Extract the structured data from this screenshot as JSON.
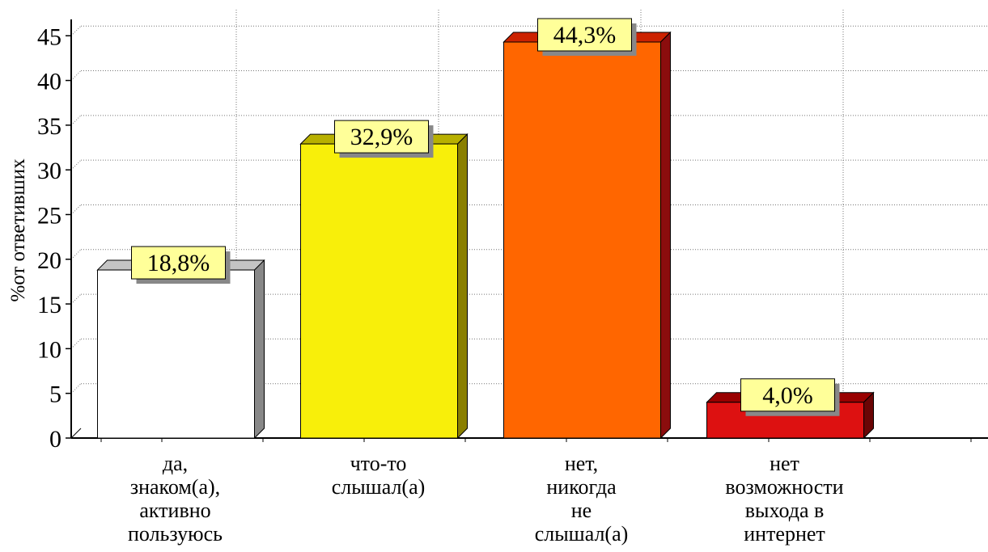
{
  "chart_data": {
    "type": "bar",
    "title": "",
    "xlabel": "",
    "ylabel": "%от ответивших",
    "ylim": [
      0,
      47
    ],
    "yticks": [
      0,
      5,
      10,
      15,
      20,
      25,
      30,
      35,
      40,
      45
    ],
    "grid": true,
    "style": "3d",
    "categories": [
      [
        "да,",
        "знаком(а),",
        "активно",
        "пользуюсь"
      ],
      [
        "что-то",
        "слышал(а)"
      ],
      [
        "нет,",
        "никогда",
        "не",
        "слышал(а)"
      ],
      [
        "нет",
        "возможности",
        "выхода в",
        "интернет"
      ]
    ],
    "values": [
      18.8,
      32.9,
      44.3,
      4.0
    ],
    "data_labels": [
      "18,8%",
      "32,9%",
      "44,3%",
      "4,0%"
    ],
    "colors": {
      "bars": [
        "#ffffff",
        "#f8ef0a",
        "#ff6600",
        "#dd1111"
      ],
      "bar_sides": [
        "#888888",
        "#8a7f00",
        "#8b0d0d",
        "#6a0505"
      ],
      "bar_tops": [
        "#c4c4c4",
        "#b8b000",
        "#cc2200",
        "#990000"
      ],
      "label_box": "#ffff99",
      "label_shadow": "#888888",
      "grid": "#777777"
    }
  }
}
